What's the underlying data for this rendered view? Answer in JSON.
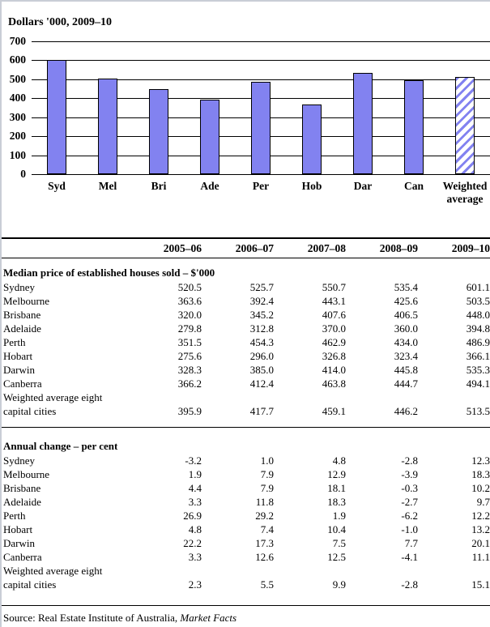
{
  "page": {
    "source_prefix": "Source: Real Estate Institute of Australia, ",
    "source_publication": "Market Facts"
  },
  "chart_data": {
    "type": "bar",
    "title": "Dollars '000, 2009–10",
    "categories": [
      "Syd",
      "Mel",
      "Bri",
      "Ade",
      "Per",
      "Hob",
      "Dar",
      "Can",
      "Weighted\naverage"
    ],
    "values": [
      601.1,
      503.5,
      448.0,
      394.8,
      486.9,
      366.1,
      535.3,
      494.1,
      513.5
    ],
    "ylim": [
      0,
      700
    ],
    "ytick_step": 100,
    "ytick_labels": [
      "0",
      "100",
      "200",
      "300",
      "400",
      "500",
      "600",
      "700"
    ],
    "grid": true,
    "legend": "none",
    "bar_color": "#8282f0",
    "bar_border_color": "#000000",
    "last_bar_hatched": true
  },
  "table": {
    "col_headers": [
      "2005–06",
      "2006–07",
      "2007–08",
      "2008–09",
      "2009–10"
    ],
    "sections": [
      {
        "heading": "Median price of established houses sold – $'000",
        "rows": [
          {
            "label": "Sydney",
            "values": [
              "520.5",
              "525.7",
              "550.7",
              "535.4",
              "601.1"
            ]
          },
          {
            "label": "Melbourne",
            "values": [
              "363.6",
              "392.4",
              "443.1",
              "425.6",
              "503.5"
            ]
          },
          {
            "label": "Brisbane",
            "values": [
              "320.0",
              "345.2",
              "407.6",
              "406.5",
              "448.0"
            ]
          },
          {
            "label": "Adelaide",
            "values": [
              "279.8",
              "312.8",
              "370.0",
              "360.0",
              "394.8"
            ]
          },
          {
            "label": "Perth",
            "values": [
              "351.5",
              "454.3",
              "462.9",
              "434.0",
              "486.9"
            ]
          },
          {
            "label": "Hobart",
            "values": [
              "275.6",
              "296.0",
              "326.8",
              "323.4",
              "366.1"
            ]
          },
          {
            "label": "Darwin",
            "values": [
              "328.3",
              "385.0",
              "414.0",
              "445.8",
              "535.3"
            ]
          },
          {
            "label": "Canberra",
            "values": [
              "366.2",
              "412.4",
              "463.8",
              "444.7",
              "494.1"
            ]
          },
          {
            "label": "Weighted average eight\ncapital cities",
            "values": [
              "395.9",
              "417.7",
              "459.1",
              "446.2",
              "513.5"
            ]
          }
        ]
      },
      {
        "heading": "Annual change – per cent",
        "rows": [
          {
            "label": "Sydney",
            "values": [
              "-3.2",
              "1.0",
              "4.8",
              "-2.8",
              "12.3"
            ]
          },
          {
            "label": "Melbourne",
            "values": [
              "1.9",
              "7.9",
              "12.9",
              "-3.9",
              "18.3"
            ]
          },
          {
            "label": "Brisbane",
            "values": [
              "4.4",
              "7.9",
              "18.1",
              "-0.3",
              "10.2"
            ]
          },
          {
            "label": "Adelaide",
            "values": [
              "3.3",
              "11.8",
              "18.3",
              "-2.7",
              "9.7"
            ]
          },
          {
            "label": "Perth",
            "values": [
              "26.9",
              "29.2",
              "1.9",
              "-6.2",
              "12.2"
            ]
          },
          {
            "label": "Hobart",
            "values": [
              "4.8",
              "7.4",
              "10.4",
              "-1.0",
              "13.2"
            ]
          },
          {
            "label": "Darwin",
            "values": [
              "22.2",
              "17.3",
              "7.5",
              "7.7",
              "20.1"
            ]
          },
          {
            "label": "Canberra",
            "values": [
              "3.3",
              "12.6",
              "12.5",
              "-4.1",
              "11.1"
            ]
          },
          {
            "label": "Weighted average eight\ncapital cities",
            "values": [
              "2.3",
              "5.5",
              "9.9",
              "-2.8",
              "15.1"
            ]
          }
        ]
      }
    ]
  }
}
